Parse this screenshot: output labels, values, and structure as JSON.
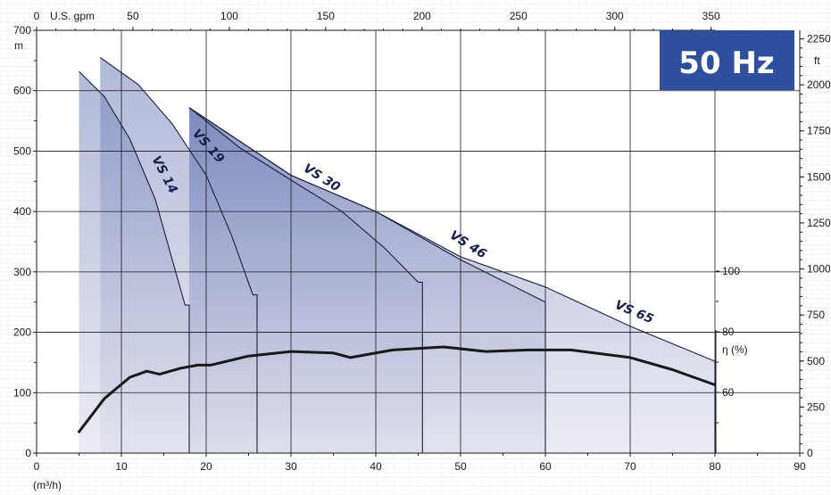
{
  "badge": "50 Hz",
  "chart_data": {
    "type": "area",
    "title": "",
    "frequency": "50 Hz",
    "grid": true,
    "colors": {
      "fill_top": "#6f7fb8",
      "fill_bottom": "#dcdcea",
      "curve": "#1f1f3a",
      "efficiency": "#1a1a1a",
      "badge": "#2d4f9e"
    },
    "axes": {
      "x_bottom": {
        "label": "(m³/h)",
        "range": [
          0,
          90
        ],
        "ticks": [
          "0",
          "10",
          "20",
          "30",
          "40",
          "50",
          "60",
          "70",
          "80",
          "90"
        ]
      },
      "x_top": {
        "label": "U.S. gpm",
        "range": [
          0,
          396
        ],
        "ticks": [
          "0",
          "50",
          "100",
          "150",
          "200",
          "250",
          "300",
          "350"
        ]
      },
      "y_left": {
        "label": "m",
        "range": [
          0,
          700
        ],
        "ticks": [
          "0",
          "100",
          "200",
          "300",
          "400",
          "500",
          "600",
          "700"
        ]
      },
      "y_right": {
        "label": "ft",
        "range": [
          0,
          2296
        ],
        "ticks": [
          "0",
          "250",
          "500",
          "750",
          "1000",
          "1250",
          "1500",
          "1750",
          "2000",
          "2250"
        ]
      },
      "y_eff": {
        "label": "η (%)",
        "ticks": [
          "60",
          "80",
          "100"
        ]
      }
    },
    "series": [
      {
        "name": "VS 14",
        "x": [
          5,
          8,
          11,
          14,
          16,
          17.5,
          18,
          18
        ],
        "y": [
          632,
          590,
          520,
          420,
          320,
          245,
          245,
          0
        ]
      },
      {
        "name": "VS 19",
        "x": [
          7.5,
          12,
          16,
          20,
          23,
          25.5,
          26,
          26
        ],
        "y": [
          655,
          610,
          545,
          460,
          360,
          262,
          262,
          0
        ]
      },
      {
        "name": "VS 30",
        "x": [
          18,
          24,
          30,
          36,
          41,
          45,
          45.5,
          45.5
        ],
        "y": [
          572,
          505,
          452,
          400,
          340,
          283,
          283,
          0
        ]
      },
      {
        "name": "VS 46",
        "x": [
          18,
          30,
          40,
          50,
          55,
          60,
          60
        ],
        "y": [
          572,
          460,
          400,
          320,
          285,
          250,
          0
        ]
      },
      {
        "name": "VS 65",
        "x": [
          18,
          30,
          40,
          50,
          60,
          70,
          80,
          80
        ],
        "y": [
          572,
          460,
          400,
          325,
          275,
          210,
          152,
          0
        ]
      }
    ],
    "efficiency": {
      "name": "η (%)",
      "x": [
        5,
        8,
        11,
        13,
        14.5,
        17,
        19,
        20.5,
        25,
        30,
        35,
        37,
        42,
        48,
        53,
        58,
        63,
        70,
        75,
        80
      ],
      "y": [
        47,
        58,
        65,
        67,
        66,
        68,
        69,
        69,
        72,
        73.5,
        73,
        71.5,
        74,
        75,
        73.5,
        74,
        74,
        71.5,
        67.5,
        62.5
      ]
    }
  }
}
